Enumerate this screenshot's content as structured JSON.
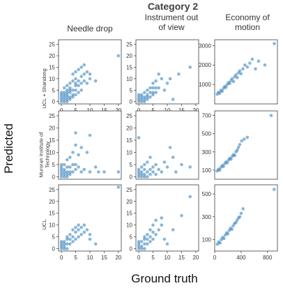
{
  "figure": {
    "title": "Category 2",
    "xlabel": "Ground truth",
    "ylabel": "Predicted",
    "columns": [
      "Needle drop",
      "Instrument out\nof view",
      "Economy of\nmotion"
    ],
    "rows": [
      "UCL + Shandong",
      "Muroran Institute of\nTechnology",
      "UCL"
    ],
    "point_color": "#2a7ab8"
  },
  "chart_data": [
    {
      "type": "scatter",
      "row": "UCL + Shandong",
      "column": "Needle drop",
      "xlim": [
        -1,
        21
      ],
      "ylim": [
        -1,
        27
      ],
      "xticks": [
        0,
        5,
        10,
        15,
        20
      ],
      "yticks": [
        0,
        5,
        10,
        15,
        20,
        25
      ],
      "x": [
        0,
        0,
        0,
        0,
        0,
        1,
        1,
        1,
        1,
        1,
        1,
        2,
        2,
        2,
        2,
        2,
        2,
        2,
        3,
        3,
        3,
        3,
        3,
        3,
        4,
        4,
        4,
        4,
        4,
        5,
        5,
        5,
        5,
        5,
        5,
        6,
        6,
        6,
        6,
        7,
        7,
        7,
        7,
        8,
        8,
        8,
        9,
        9,
        10,
        10,
        12,
        20
      ],
      "y": [
        0,
        1,
        2,
        3,
        4,
        0,
        1,
        2,
        3,
        4,
        6,
        0,
        1,
        2,
        3,
        4,
        5,
        7,
        1,
        2,
        4,
        5,
        6,
        8,
        2,
        3,
        5,
        9,
        12,
        3,
        5,
        7,
        8,
        10,
        13,
        4,
        7,
        9,
        14,
        5,
        8,
        11,
        15,
        9,
        12,
        16,
        8,
        13,
        10,
        12,
        9,
        20
      ]
    },
    {
      "type": "scatter",
      "row": "UCL + Shandong",
      "column": "Instrument out\nof view",
      "xlim": [
        -1,
        21
      ],
      "ylim": [
        -1,
        27
      ],
      "xticks": [
        0,
        5,
        10,
        15,
        20
      ],
      "yticks": [
        0,
        5,
        10,
        15,
        20,
        25
      ],
      "x": [
        0,
        0,
        0,
        0,
        1,
        1,
        1,
        1,
        2,
        2,
        2,
        2,
        3,
        3,
        3,
        3,
        4,
        4,
        4,
        5,
        5,
        5,
        5,
        6,
        6,
        6,
        7,
        7,
        8,
        9,
        10,
        11,
        12,
        14,
        18
      ],
      "y": [
        0,
        1,
        2,
        3,
        0,
        1,
        2,
        3,
        0,
        1,
        2,
        4,
        1,
        2,
        3,
        5,
        2,
        4,
        6,
        3,
        4,
        6,
        8,
        4,
        6,
        9,
        6,
        12,
        10,
        5,
        8,
        10,
        1,
        12,
        15
      ]
    },
    {
      "type": "scatter",
      "row": "UCL + Shandong",
      "column": "Economy of\nmotion",
      "xlim": [
        0,
        1000
      ],
      "ylim": [
        0,
        3300
      ],
      "xticks": [],
      "yticks": [
        1000,
        2000,
        3000
      ],
      "x": [
        40,
        60,
        80,
        100,
        120,
        140,
        160,
        180,
        200,
        220,
        240,
        260,
        280,
        300,
        320,
        340,
        360,
        380,
        400,
        420,
        450,
        480,
        520,
        560,
        600,
        650,
        700,
        800,
        950
      ],
      "y": [
        500,
        600,
        550,
        700,
        650,
        800,
        900,
        850,
        1000,
        1100,
        1050,
        1200,
        1300,
        1150,
        1400,
        1500,
        1350,
        1600,
        1700,
        1550,
        1800,
        2000,
        1900,
        2100,
        2300,
        1800,
        2200,
        2000,
        3100
      ]
    },
    {
      "type": "scatter",
      "row": "Muroran Institute of\nTechnology",
      "column": "Needle drop",
      "xlim": [
        -1,
        21
      ],
      "ylim": [
        -1,
        27
      ],
      "xticks": [],
      "yticks": [
        0,
        5,
        10,
        15,
        20,
        25
      ],
      "x": [
        0,
        0,
        0,
        0,
        0,
        0,
        1,
        1,
        1,
        1,
        1,
        2,
        2,
        2,
        2,
        2,
        3,
        3,
        3,
        3,
        4,
        4,
        4,
        5,
        5,
        5,
        5,
        6,
        6,
        7,
        7,
        8,
        9,
        10,
        10,
        12,
        13,
        15,
        20
      ],
      "y": [
        0,
        1,
        2,
        3,
        4,
        5,
        0,
        1,
        2,
        3,
        5,
        0,
        1,
        2,
        4,
        7,
        1,
        2,
        4,
        8,
        2,
        5,
        10,
        3,
        5,
        13,
        18,
        4,
        9,
        2,
        12,
        3,
        10,
        2,
        17,
        4,
        2,
        2,
        2
      ]
    },
    {
      "type": "scatter",
      "row": "Muroran Institute of\nTechnology",
      "column": "Instrument out\nof view",
      "xlim": [
        -1,
        21
      ],
      "ylim": [
        -1,
        27
      ],
      "xticks": [],
      "yticks": [
        0,
        5,
        10,
        15,
        20,
        25
      ],
      "x": [
        0,
        0,
        0,
        0,
        0,
        1,
        1,
        1,
        1,
        2,
        2,
        2,
        2,
        3,
        3,
        3,
        4,
        4,
        4,
        5,
        5,
        6,
        6,
        7,
        8,
        9,
        10,
        11,
        12,
        13,
        15,
        18
      ],
      "y": [
        0,
        1,
        2,
        3,
        16,
        0,
        1,
        2,
        4,
        0,
        1,
        3,
        5,
        0,
        2,
        6,
        1,
        3,
        8,
        2,
        4,
        1,
        5,
        3,
        2,
        6,
        4,
        12,
        8,
        2,
        5,
        4
      ]
    },
    {
      "type": "scatter",
      "row": "Muroran Institute of\nTechnology",
      "column": "Economy of\nmotion",
      "xlim": [
        0,
        1000
      ],
      "ylim": [
        0,
        750
      ],
      "xticks": [],
      "yticks": [
        100,
        300,
        500,
        700
      ],
      "x": [
        40,
        60,
        80,
        100,
        120,
        140,
        160,
        180,
        200,
        220,
        240,
        260,
        280,
        300,
        320,
        340,
        360,
        380,
        400,
        430,
        470,
        520,
        900
      ],
      "y": [
        90,
        110,
        100,
        130,
        150,
        140,
        170,
        190,
        180,
        210,
        230,
        220,
        250,
        270,
        260,
        300,
        320,
        350,
        380,
        420,
        440,
        460,
        700
      ]
    },
    {
      "type": "scatter",
      "row": "UCL",
      "column": "Needle drop",
      "xlim": [
        -1,
        21
      ],
      "ylim": [
        -1,
        27
      ],
      "xticks": [
        0,
        5,
        10,
        15,
        20
      ],
      "yticks": [
        0,
        5,
        10,
        15,
        20,
        25
      ],
      "x": [
        0,
        0,
        0,
        0,
        1,
        1,
        1,
        1,
        2,
        2,
        2,
        2,
        3,
        3,
        3,
        4,
        4,
        4,
        5,
        5,
        5,
        6,
        6,
        6,
        7,
        7,
        8,
        8,
        9,
        10,
        10,
        12,
        20
      ],
      "y": [
        0,
        1,
        2,
        3,
        0,
        1,
        2,
        3,
        0,
        2,
        4,
        5,
        2,
        4,
        6,
        3,
        5,
        8,
        4,
        7,
        9,
        5,
        8,
        10,
        6,
        9,
        7,
        10,
        8,
        6,
        4,
        2,
        26
      ]
    },
    {
      "type": "scatter",
      "row": "UCL",
      "column": "Instrument out\nof view",
      "xlim": [
        -1,
        21
      ],
      "ylim": [
        -1,
        27
      ],
      "xticks": [
        0,
        5,
        10,
        15,
        20
      ],
      "yticks": [
        0,
        5,
        10,
        15,
        20,
        25
      ],
      "x": [
        0,
        0,
        0,
        0,
        1,
        1,
        1,
        2,
        2,
        2,
        2,
        3,
        3,
        3,
        4,
        4,
        4,
        5,
        5,
        5,
        6,
        6,
        7,
        8,
        8,
        9,
        10,
        12,
        15,
        18
      ],
      "y": [
        0,
        1,
        2,
        3,
        0,
        1,
        3,
        0,
        2,
        4,
        5,
        2,
        4,
        6,
        3,
        5,
        8,
        4,
        7,
        10,
        6,
        12,
        8,
        10,
        13,
        4,
        2,
        8,
        14,
        22
      ]
    },
    {
      "type": "scatter",
      "row": "UCL",
      "column": "Economy of\nmotion",
      "xlim": [
        0,
        950
      ],
      "ylim": [
        0,
        580
      ],
      "xticks": [
        0,
        400,
        800
      ],
      "yticks": [
        100,
        300,
        500
      ],
      "x": [
        40,
        60,
        80,
        100,
        120,
        140,
        160,
        180,
        200,
        220,
        240,
        260,
        280,
        300,
        320,
        340,
        360,
        380,
        400,
        430,
        900
      ],
      "y": [
        60,
        80,
        70,
        100,
        120,
        110,
        140,
        160,
        150,
        180,
        200,
        190,
        220,
        240,
        250,
        270,
        290,
        300,
        330,
        370,
        540
      ]
    }
  ]
}
